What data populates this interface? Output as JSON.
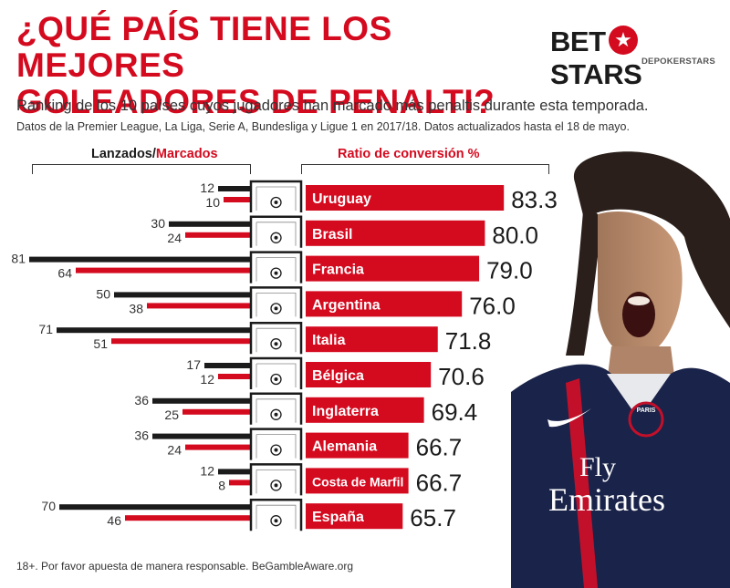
{
  "title_lines": [
    "¿QUÉ PAÍS TIENE LOS MEJORES",
    "GOLEADORES DE PENALTI?"
  ],
  "subtitle": "Ranking de los 10 países cuyos jugadores han marcado más penaltis durante esta temporada.",
  "note": "Datos de la Premier League, La Liga, Serie A, Bundesliga y Ligue 1 en 2017/18. Datos actualizados hasta el 18 de mayo.",
  "footer": "18+. Por favor apuesta de manera responsable. BeGambleAware.org",
  "logo": {
    "left": "BET",
    "right": "STARS",
    "sub": "DEPOKERSTARS"
  },
  "headers": {
    "lanzados": "Lanzados/",
    "marcados": "Marcados",
    "ratio": "Ratio de conversión %"
  },
  "player_shirt": {
    "sponsor_line1": "Fly",
    "sponsor_line2": "Emirates",
    "crest": "PARIS"
  },
  "colors": {
    "accent": "#d40a1f",
    "dark": "#1b1b1b",
    "text": "#333333"
  },
  "icons": {
    "goal": "goal-ball-icon",
    "brand": "star-badge-icon"
  },
  "chart_data": {
    "type": "bar",
    "categories": [
      "Uruguay",
      "Brasil",
      "Francia",
      "Argentina",
      "Italia",
      "Bélgica",
      "Inglaterra",
      "Alemania",
      "Costa de Marfil",
      "España"
    ],
    "series": [
      {
        "name": "Lanzados",
        "values": [
          12,
          30,
          81,
          50,
          71,
          17,
          36,
          36,
          12,
          70
        ]
      },
      {
        "name": "Marcados",
        "values": [
          10,
          24,
          64,
          38,
          51,
          12,
          25,
          24,
          8,
          46
        ]
      },
      {
        "name": "Ratio de conversión %",
        "values": [
          83.3,
          80.0,
          79.0,
          76.0,
          71.8,
          70.6,
          69.4,
          66.7,
          66.7,
          65.7
        ]
      }
    ],
    "ratio_labels": [
      "83.3",
      "80.0",
      "79.0",
      "76.0",
      "71.8",
      "70.6",
      "69.4",
      "66.7",
      "66.7",
      "65.7"
    ]
  }
}
